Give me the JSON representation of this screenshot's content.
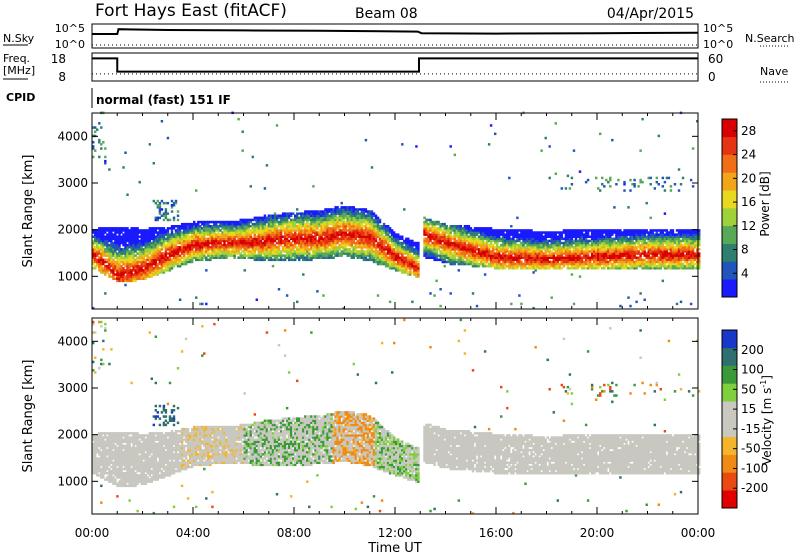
{
  "header": {
    "station": "Fort Hays East (fitACF)",
    "beam": "Beam 08",
    "date": "04/Apr/2015"
  },
  "status": {
    "nsky_label": "N.Sky",
    "nsky_ticks": [
      "10^5",
      "10^0"
    ],
    "nsearch_label": "N.Search",
    "nsearch_ticks": [
      "10^5",
      "10^0"
    ],
    "freq_label_1": "Freq.",
    "freq_label_2": "[MHz]",
    "freq_ticks": [
      "18",
      "8"
    ],
    "nave_label": "Nave",
    "nave_ticks": [
      "60",
      "0"
    ],
    "cpid_label": "CPID",
    "cpid_value": "normal (fast) 151 IF"
  },
  "axes": {
    "ylabel": "Slant Range [km]",
    "xlabel": "Time UT",
    "x_ticks": [
      "00:00",
      "04:00",
      "08:00",
      "12:00",
      "16:00",
      "20:00",
      "00:00"
    ],
    "y_ticks": [
      "1000",
      "2000",
      "3000",
      "4000"
    ]
  },
  "chart_data": [
    {
      "type": "heatmap",
      "title": "",
      "quantity": "Power",
      "colorbar_label": "Power [dB]",
      "colorbar_ticks": [
        "4",
        "8",
        "12",
        "16",
        "20",
        "24",
        "28"
      ],
      "clim": [
        0,
        30
      ],
      "colorscale": [
        "#1a1aff",
        "#2255bb",
        "#2f7f6f",
        "#58a855",
        "#9fd23a",
        "#e8d81e",
        "#f3a51a",
        "#f06f16",
        "#e63312",
        "#d80000"
      ],
      "xlim_hours": [
        0,
        24
      ],
      "ylim_km": [
        300,
        4500
      ],
      "gap_hours": [
        12.9,
        13.05
      ],
      "echo_band": [
        {
          "t": 0.0,
          "lo": 1150,
          "hi": 2000,
          "peak": 1450
        },
        {
          "t": 1.0,
          "lo": 850,
          "hi": 2050,
          "peak": 1000
        },
        {
          "t": 2.0,
          "lo": 900,
          "hi": 2000,
          "peak": 1150
        },
        {
          "t": 3.0,
          "lo": 1100,
          "hi": 2050,
          "peak": 1450
        },
        {
          "t": 4.0,
          "lo": 1300,
          "hi": 2150,
          "peak": 1650
        },
        {
          "t": 5.0,
          "lo": 1350,
          "hi": 2150,
          "peak": 1700
        },
        {
          "t": 6.0,
          "lo": 1350,
          "hi": 2200,
          "peak": 1700
        },
        {
          "t": 7.0,
          "lo": 1300,
          "hi": 2300,
          "peak": 1750
        },
        {
          "t": 8.0,
          "lo": 1300,
          "hi": 2350,
          "peak": 1800
        },
        {
          "t": 9.0,
          "lo": 1350,
          "hi": 2400,
          "peak": 1800
        },
        {
          "t": 10.0,
          "lo": 1400,
          "hi": 2500,
          "peak": 1900
        },
        {
          "t": 11.0,
          "lo": 1300,
          "hi": 2400,
          "peak": 1800
        },
        {
          "t": 12.0,
          "lo": 1100,
          "hi": 1900,
          "peak": 1400
        },
        {
          "t": 12.9,
          "lo": 950,
          "hi": 1700,
          "peak": 1150
        },
        {
          "t": 13.05,
          "lo": 1400,
          "hi": 2250,
          "peak": 1900
        },
        {
          "t": 14.0,
          "lo": 1250,
          "hi": 2100,
          "peak": 1700
        },
        {
          "t": 16.0,
          "lo": 1150,
          "hi": 2000,
          "peak": 1400
        },
        {
          "t": 18.0,
          "lo": 1150,
          "hi": 1950,
          "peak": 1350
        },
        {
          "t": 20.0,
          "lo": 1150,
          "hi": 2000,
          "peak": 1400
        },
        {
          "t": 22.0,
          "lo": 1150,
          "hi": 2000,
          "peak": 1450
        },
        {
          "t": 24.0,
          "lo": 1150,
          "hi": 2000,
          "peak": 1450
        }
      ]
    },
    {
      "type": "heatmap",
      "title": "",
      "quantity": "Velocity",
      "colorbar_label": "Velocity [m s",
      "colorbar_label_sup": "-1",
      "colorbar_label_end": "]",
      "colorbar_ticks": [
        "200",
        "100",
        "50",
        "15",
        "-15",
        "-50",
        "-100",
        "-200"
      ],
      "clim": [
        -250,
        250
      ],
      "colorscale": [
        "#1a38c8",
        "#2f6f6f",
        "#3a9a3a",
        "#7fcf3f",
        "#c8c8c0",
        "#c8c8c0",
        "#f5b52a",
        "#f08a14",
        "#ea4a12",
        "#e00000"
      ],
      "xlim_hours": [
        0,
        24
      ],
      "ylim_km": [
        300,
        4500
      ]
    }
  ],
  "nsky_trace": [
    [
      0,
      3.0
    ],
    [
      1,
      3.0
    ],
    [
      1.05,
      4.2
    ],
    [
      3,
      4.0
    ],
    [
      6,
      3.9
    ],
    [
      9,
      3.8
    ],
    [
      12.9,
      3.6
    ],
    [
      13.05,
      3.2
    ],
    [
      16,
      3.1
    ],
    [
      20,
      3.2
    ],
    [
      24,
      3.3
    ]
  ],
  "freq_trace": [
    [
      0,
      17
    ],
    [
      1.0,
      17
    ],
    [
      1.0,
      11.5
    ],
    [
      12.95,
      11.5
    ],
    [
      12.95,
      17
    ],
    [
      24,
      17
    ]
  ],
  "nave_level": 14
}
